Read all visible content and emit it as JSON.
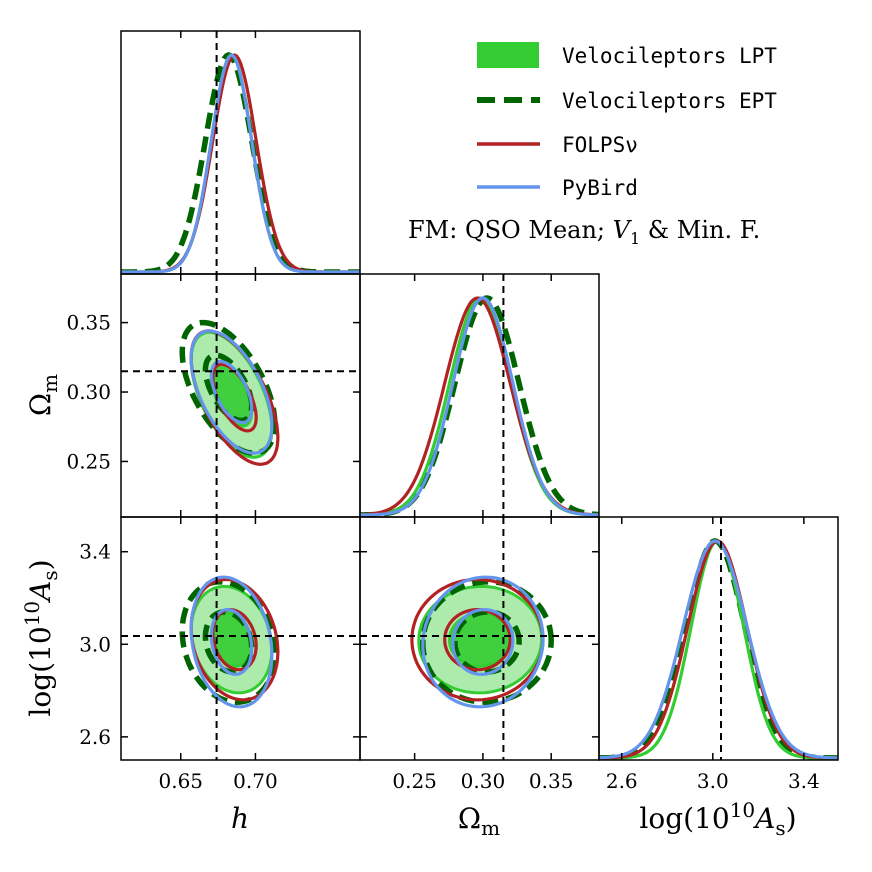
{
  "chart_data": {
    "type": "corner",
    "parameters": [
      {
        "key": "h",
        "label": "h",
        "range": [
          0.61,
          0.77
        ],
        "ticks": [
          0.65,
          0.7
        ],
        "tick_labels": [
          "0.65",
          "0.70"
        ],
        "truth": 0.674
      },
      {
        "key": "om",
        "label": "Ωm",
        "label_main": "Ω",
        "label_sub": "m",
        "range": [
          0.21,
          0.385
        ],
        "ticks": [
          0.25,
          0.3,
          0.35
        ],
        "tick_labels": [
          "0.25",
          "0.30",
          "0.35"
        ],
        "truth": 0.315
      },
      {
        "key": "as",
        "label": "log(10^10 As)",
        "label_main": "log(10",
        "label_exp": "10",
        "label_mid": "A",
        "label_sub": "s",
        "label_end": ")",
        "range": [
          2.5,
          3.55
        ],
        "ticks": [
          2.6,
          3.0,
          3.4
        ],
        "tick_labels": [
          "2.6",
          "3.0",
          "3.4"
        ],
        "truth": 3.036
      }
    ],
    "series": [
      {
        "name": "Velocileptors LPT",
        "color": "#33cc33",
        "fill": true,
        "dashed": false,
        "mean": {
          "h": 0.684,
          "om": 0.298,
          "as": 3.02
        },
        "sigma": {
          "h": 0.0135,
          "om": 0.0225,
          "as": 0.115
        },
        "corr": {
          "h_om": -0.55,
          "h_as": -0.18,
          "om_as": 0.02
        }
      },
      {
        "name": "Velocileptors EPT",
        "color": "#006400",
        "fill": false,
        "dashed": true,
        "mean": {
          "h": 0.682,
          "om": 0.303,
          "as": 3.01
        },
        "sigma": {
          "h": 0.0155,
          "om": 0.0235,
          "as": 0.13
        },
        "corr": {
          "h_om": -0.55,
          "h_as": -0.18,
          "om_as": 0.02
        }
      },
      {
        "name": "FOLPSν",
        "color": "#b22222",
        "fill": false,
        "dashed": false,
        "mean": {
          "h": 0.686,
          "om": 0.296,
          "as": 3.02
        },
        "sigma": {
          "h": 0.0145,
          "om": 0.024,
          "as": 0.13
        },
        "corr": {
          "h_om": -0.6,
          "h_as": -0.2,
          "om_as": 0.0
        }
      },
      {
        "name": "PyBird",
        "color": "#6495ed",
        "fill": false,
        "dashed": false,
        "mean": {
          "h": 0.684,
          "om": 0.3,
          "as": 3.01
        },
        "sigma": {
          "h": 0.0135,
          "om": 0.022,
          "as": 0.14
        },
        "corr": {
          "h_om": -0.55,
          "h_as": -0.2,
          "om_as": 0.05
        }
      }
    ],
    "legend": {
      "placement": "top-right",
      "entries": [
        "Velocileptors LPT",
        "Velocileptors EPT",
        "FOLPSν",
        "PyBird"
      ]
    },
    "annotation": "FM: QSO Mean; V1 & Min. F.",
    "annotation_parts": {
      "prefix": "FM: QSO Mean; ",
      "v": "V",
      "v_sub": "1",
      "suffix": " & Min. F."
    },
    "contour_levels_sigma": [
      1,
      2
    ]
  }
}
